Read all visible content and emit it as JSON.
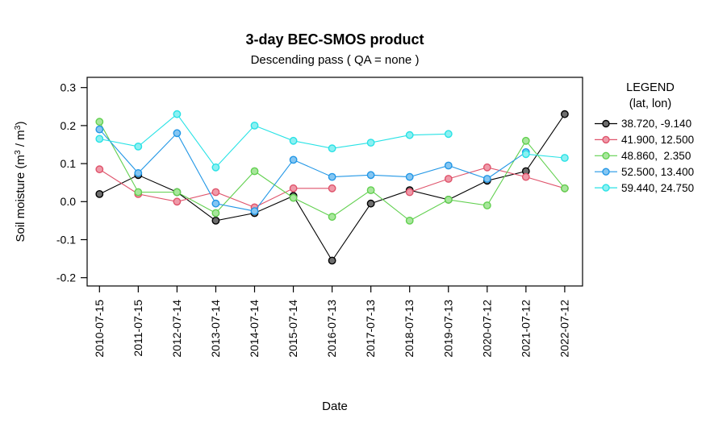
{
  "chart_data": {
    "type": "line",
    "title": "3-day BEC-SMOS product",
    "subtitle": "Descending pass ( QA = none )",
    "xlabel": "Date",
    "ylabel": "Soil moisture (m³ / m³)",
    "ylim": [
      -0.2,
      0.3
    ],
    "yticks": [
      0.3,
      0.2,
      0.1,
      0,
      -0.1,
      -0.2
    ],
    "grid": "off",
    "legend_position": "right",
    "legend": {
      "title": "LEGEND",
      "subtitle": "(lat, lon)"
    },
    "categories": [
      "2010-07-15",
      "2011-07-15",
      "2012-07-14",
      "2013-07-14",
      "2014-07-14",
      "2015-07-14",
      "2016-07-13",
      "2017-07-13",
      "2018-07-13",
      "2019-07-13",
      "2020-07-12",
      "2021-07-12",
      "2022-07-12"
    ],
    "series": [
      {
        "name": "38.720, -9.140",
        "color": "#000000",
        "fill": "#6e6e6e",
        "values": [
          0.02,
          0.07,
          0.025,
          -0.05,
          -0.03,
          0.015,
          -0.155,
          -0.005,
          0.03,
          0.005,
          0.055,
          0.08,
          0.23
        ]
      },
      {
        "name": "41.900, 12.500",
        "color": "#DF536B",
        "fill": "#ef9aa9",
        "values": [
          0.085,
          0.02,
          0.0,
          0.025,
          -0.015,
          0.035,
          0.035,
          null,
          0.025,
          0.06,
          0.09,
          0.065,
          0.035
        ]
      },
      {
        "name": "48.860,  2.350",
        "color": "#61D04F",
        "fill": "#a8e69c",
        "values": [
          0.21,
          0.025,
          0.025,
          -0.03,
          0.08,
          0.01,
          -0.04,
          0.03,
          -0.05,
          0.005,
          -0.01,
          0.16,
          0.035
        ]
      },
      {
        "name": "52.500, 13.400",
        "color": "#2297E6",
        "fill": "#85c6f2",
        "values": [
          0.19,
          0.075,
          0.18,
          -0.005,
          -0.025,
          0.11,
          0.065,
          0.07,
          0.065,
          0.095,
          0.06,
          0.13,
          null
        ]
      },
      {
        "name": "59.440, 24.750",
        "color": "#28E2E5",
        "fill": "#8cf0f2",
        "values": [
          0.165,
          0.145,
          0.23,
          0.09,
          0.2,
          0.16,
          0.14,
          0.155,
          0.175,
          0.178,
          null,
          0.125,
          0.115
        ]
      }
    ]
  }
}
